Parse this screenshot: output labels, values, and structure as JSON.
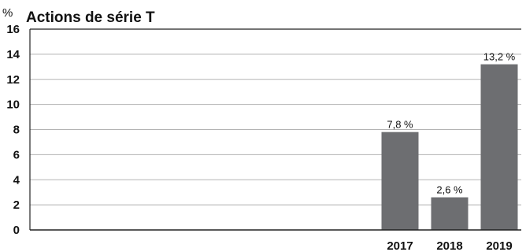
{
  "chart_data": {
    "type": "bar",
    "title": "Actions de série T",
    "ylabel": "%",
    "xlabel": "",
    "ylim": [
      0,
      16
    ],
    "yticks": [
      0,
      2,
      4,
      6,
      8,
      10,
      12,
      14,
      16
    ],
    "categories": [
      "2017",
      "2018",
      "2019"
    ],
    "values": [
      7.8,
      2.6,
      13.2
    ],
    "value_labels": [
      "7,8 %",
      "2,6 %",
      "13,2 %"
    ],
    "grid": true,
    "legend": "none",
    "colors": {
      "bar": "#6d6e71",
      "grid": "#b3b3b3",
      "axis": "#222222"
    }
  }
}
